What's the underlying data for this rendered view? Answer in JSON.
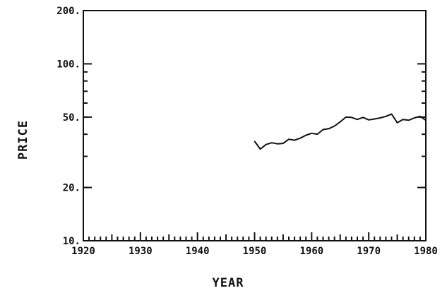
{
  "chart_data": {
    "type": "line",
    "title": "",
    "xlabel": "YEAR",
    "ylabel": "PRICE",
    "xlim": [
      1920,
      1980
    ],
    "ylim": [
      10,
      200
    ],
    "yscale": "log",
    "grid": false,
    "x_ticks": [
      {
        "value": 1920,
        "label": "1920"
      },
      {
        "value": 1930,
        "label": "1930"
      },
      {
        "value": 1940,
        "label": "1940"
      },
      {
        "value": 1950,
        "label": "1950"
      },
      {
        "value": 1960,
        "label": "1960"
      },
      {
        "value": 1970,
        "label": "1970"
      },
      {
        "value": 1980,
        "label": "1980"
      }
    ],
    "y_ticks": [
      {
        "value": 10,
        "label": "10."
      },
      {
        "value": 20,
        "label": "20."
      },
      {
        "value": 50,
        "label": "50."
      },
      {
        "value": 100,
        "label": "100."
      },
      {
        "value": 200,
        "label": "200."
      }
    ],
    "series": [
      {
        "x": [
          1950,
          1951,
          1952,
          1953,
          1954,
          1955,
          1956,
          1957,
          1958,
          1959,
          1960,
          1961,
          1962,
          1963,
          1964,
          1965,
          1966,
          1967,
          1968,
          1969,
          1970,
          1971,
          1972,
          1973,
          1974,
          1975,
          1976,
          1977,
          1978,
          1979,
          1980
        ],
        "y": [
          36.5,
          33.0,
          35.0,
          35.8,
          35.3,
          35.5,
          37.5,
          37.0,
          38.0,
          39.5,
          40.5,
          40.0,
          42.5,
          43.0,
          44.5,
          47.0,
          50.0,
          49.8,
          48.5,
          49.8,
          48.2,
          48.8,
          49.5,
          50.5,
          52.0,
          46.5,
          48.5,
          48.0,
          49.5,
          50.5,
          48.0
        ]
      }
    ]
  }
}
